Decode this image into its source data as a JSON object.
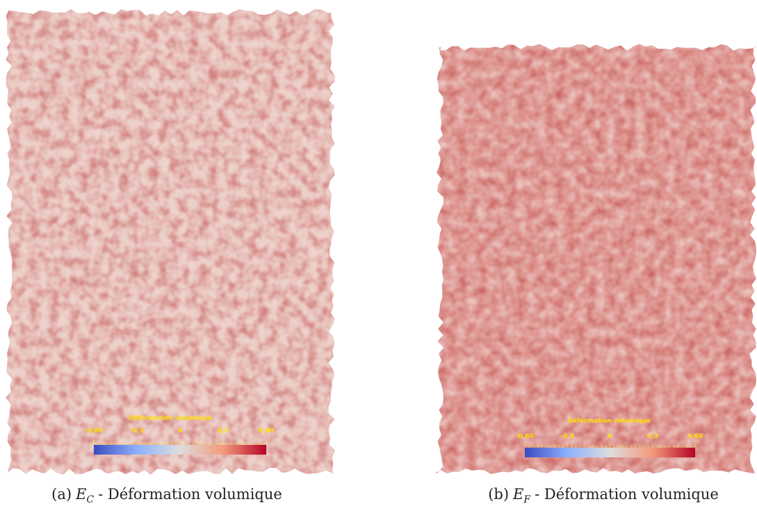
{
  "panels": [
    {
      "colorbar": {
        "title": "Déformation volumique",
        "ticks": [
          "-0,60",
          "-0,3",
          "0",
          "0,3",
          "0,60"
        ]
      },
      "caption": {
        "label": "(a)",
        "symbol": "E",
        "subscript": "C",
        "text": "- Déformation volumique"
      }
    },
    {
      "colorbar": {
        "title": "Déformation volumique",
        "ticks": [
          "-0,60",
          "-0,3",
          "0",
          "0,3",
          "0,60"
        ]
      },
      "caption": {
        "label": "(b)",
        "symbol": "E",
        "subscript": "F",
        "text": "- Déformation volumique"
      }
    }
  ]
}
